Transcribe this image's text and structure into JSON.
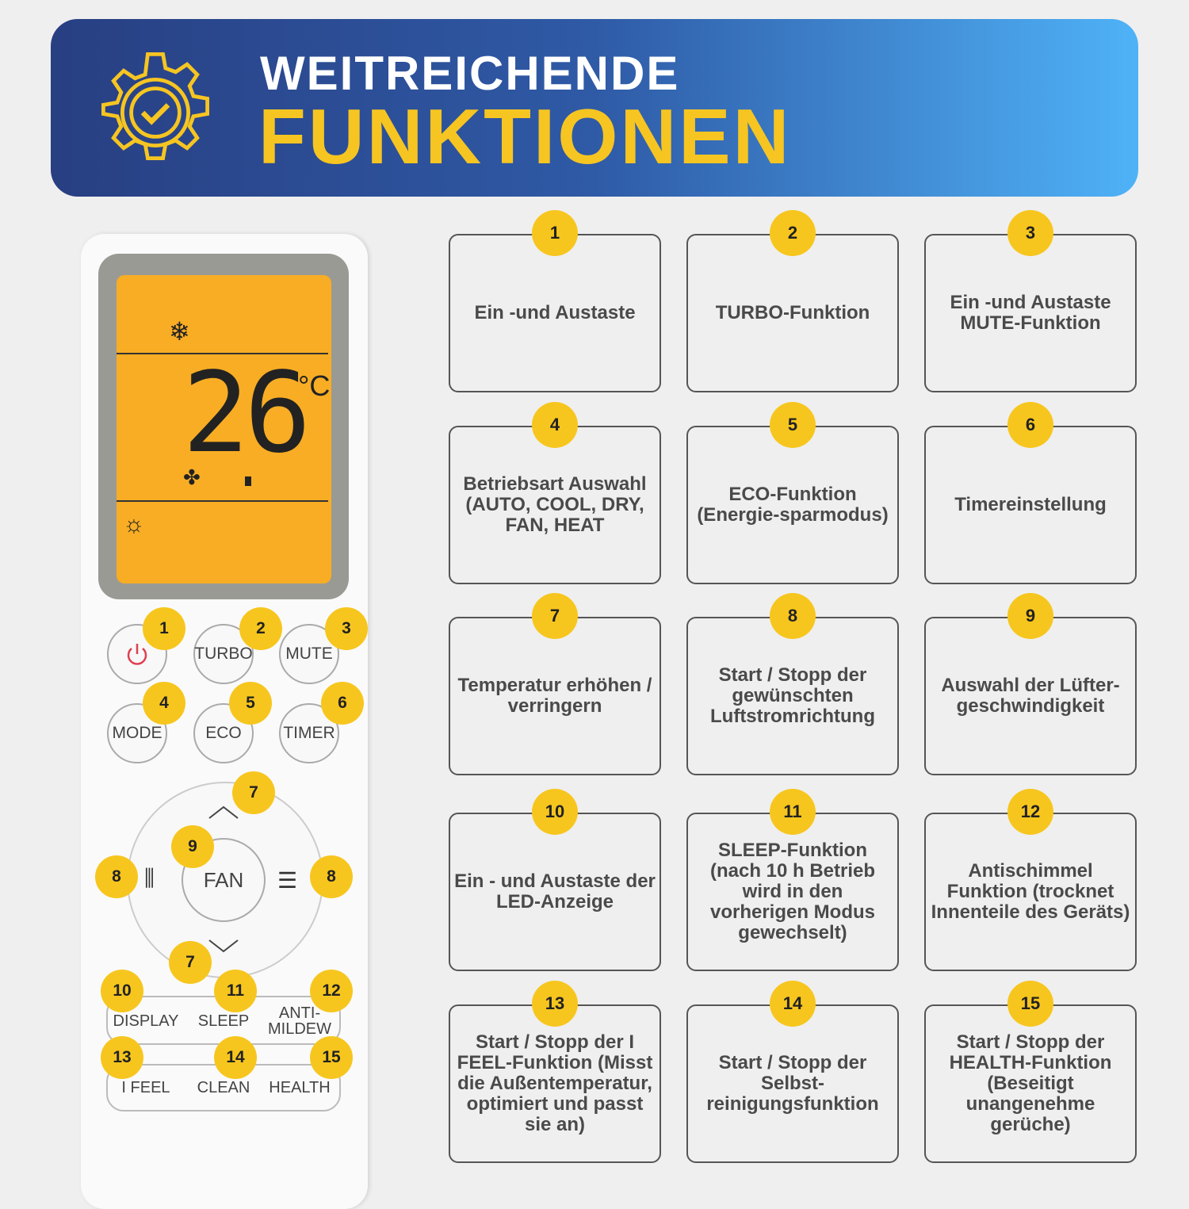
{
  "header": {
    "line1": "WEITREICHENDE",
    "line2": "FUNKTIONEN",
    "icon": "gear-check-icon"
  },
  "colors": {
    "accent": "#f7c61e",
    "banner_start": "#283f82",
    "banner_end": "#4fb2f7",
    "lcd": "#f8ad24"
  },
  "lcd": {
    "temperature": "26",
    "unit": "°C",
    "icons": [
      "snowflake-icon",
      "fan-icon",
      "light-icon"
    ]
  },
  "remote": {
    "buttons": [
      {
        "label": "",
        "icon": "power-icon",
        "num": "1"
      },
      {
        "label": "TURBO",
        "num": "2"
      },
      {
        "label": "MUTE",
        "num": "3"
      },
      {
        "label": "MODE",
        "num": "4"
      },
      {
        "label": "ECO",
        "num": "5"
      },
      {
        "label": "TIMER",
        "num": "6"
      },
      {
        "label": "FAN",
        "num": "9"
      },
      {
        "label": "DISPLAY",
        "num": "10"
      },
      {
        "label": "SLEEP",
        "num": "11"
      },
      {
        "label": "ANTI-\nMILDEW",
        "num": "12"
      },
      {
        "label": "I FEEL",
        "num": "13"
      },
      {
        "label": "CLEAN",
        "num": "14"
      },
      {
        "label": "HEALTH",
        "num": "15"
      }
    ],
    "dpad_numbers": {
      "up": "7",
      "down": "7",
      "left": "8",
      "right": "8"
    }
  },
  "functions": [
    {
      "num": "1",
      "text": "Ein -und Austaste"
    },
    {
      "num": "2",
      "text": "TURBO-Funktion"
    },
    {
      "num": "3",
      "text": "Ein -und Austaste MUTE-Funktion"
    },
    {
      "num": "4",
      "text": "Betriebsart Auswahl (AUTO, COOL, DRY, FAN, HEAT"
    },
    {
      "num": "5",
      "text": "ECO-Funktion (Energie-sparmodus)"
    },
    {
      "num": "6",
      "text": "Timereinstellung"
    },
    {
      "num": "7",
      "text": "Temperatur erhöhen / verringern"
    },
    {
      "num": "8",
      "text": "Start / Stopp der gewünschten Luftstromrichtung"
    },
    {
      "num": "9",
      "text": "Auswahl der Lüfter-geschwindigkeit"
    },
    {
      "num": "10",
      "text": "Ein - und Austaste der LED-Anzeige"
    },
    {
      "num": "11",
      "text": "SLEEP-Funktion (nach 10 h Betrieb wird in den vorherigen Modus gewechselt)"
    },
    {
      "num": "12",
      "text": "Antischimmel Funktion (trocknet Innenteile des Geräts)"
    },
    {
      "num": "13",
      "text": "Start / Stopp der I FEEL-Funktion (Misst die Außentemperatur, optimiert und passt sie an)"
    },
    {
      "num": "14",
      "text": "Start / Stopp der Selbst-reinigungsfunktion"
    },
    {
      "num": "15",
      "text": "Start / Stopp der HEALTH-Funktion (Beseitigt unangenehme gerüche)"
    }
  ]
}
